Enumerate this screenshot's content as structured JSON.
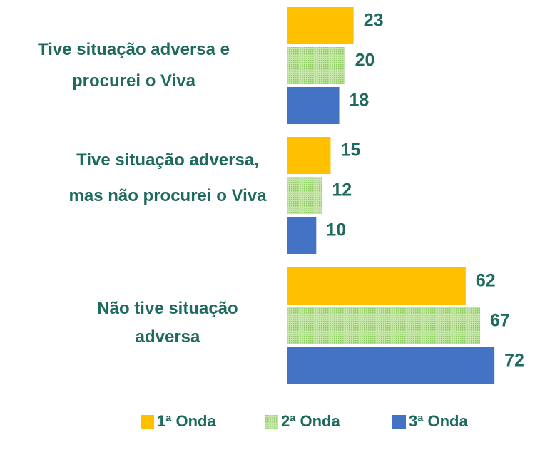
{
  "chart_data": {
    "type": "bar",
    "orientation": "horizontal",
    "categories": [
      "Tive situação adversa e procurei o Viva",
      "Tive situação adversa, mas não procurei o Viva",
      "Não tive situação adversa"
    ],
    "series": [
      {
        "name": "1ª Onda",
        "color": "#ffc000",
        "values": [
          23,
          15,
          62
        ]
      },
      {
        "name": "2ª Onda",
        "color": "#a9d88a",
        "values": [
          20,
          12,
          67
        ]
      },
      {
        "name": "3ª Onda",
        "color": "#4472c4",
        "values": [
          18,
          10,
          72
        ]
      }
    ]
  }
}
